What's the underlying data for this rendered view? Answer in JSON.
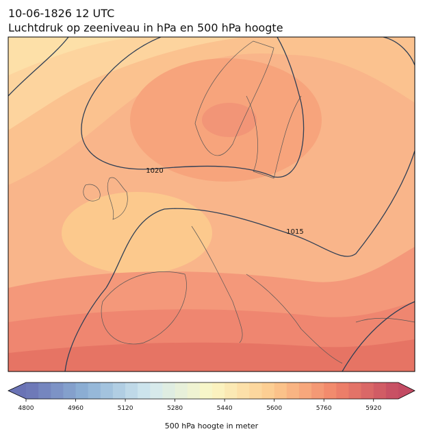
{
  "header": {
    "title_line1": "10-06-1826 12 UTC",
    "title_line2": "Luchtdruk op zeeniveau in hPa en 500 hPa hoogte"
  },
  "map": {
    "contour_labels": [
      "1020",
      "1015"
    ]
  },
  "colorbar": {
    "label": "500 hPa hoogte in meter",
    "lim": [
      4800,
      6000
    ],
    "ticks": [
      4800,
      4960,
      5120,
      5280,
      5440,
      5600,
      5760,
      5920
    ],
    "colors": [
      "#6a73b5",
      "#8fb3d6",
      "#d3e9ef",
      "#fbf7c5",
      "#fcc98d",
      "#f1846a",
      "#c34b63"
    ],
    "bins": 30
  }
}
